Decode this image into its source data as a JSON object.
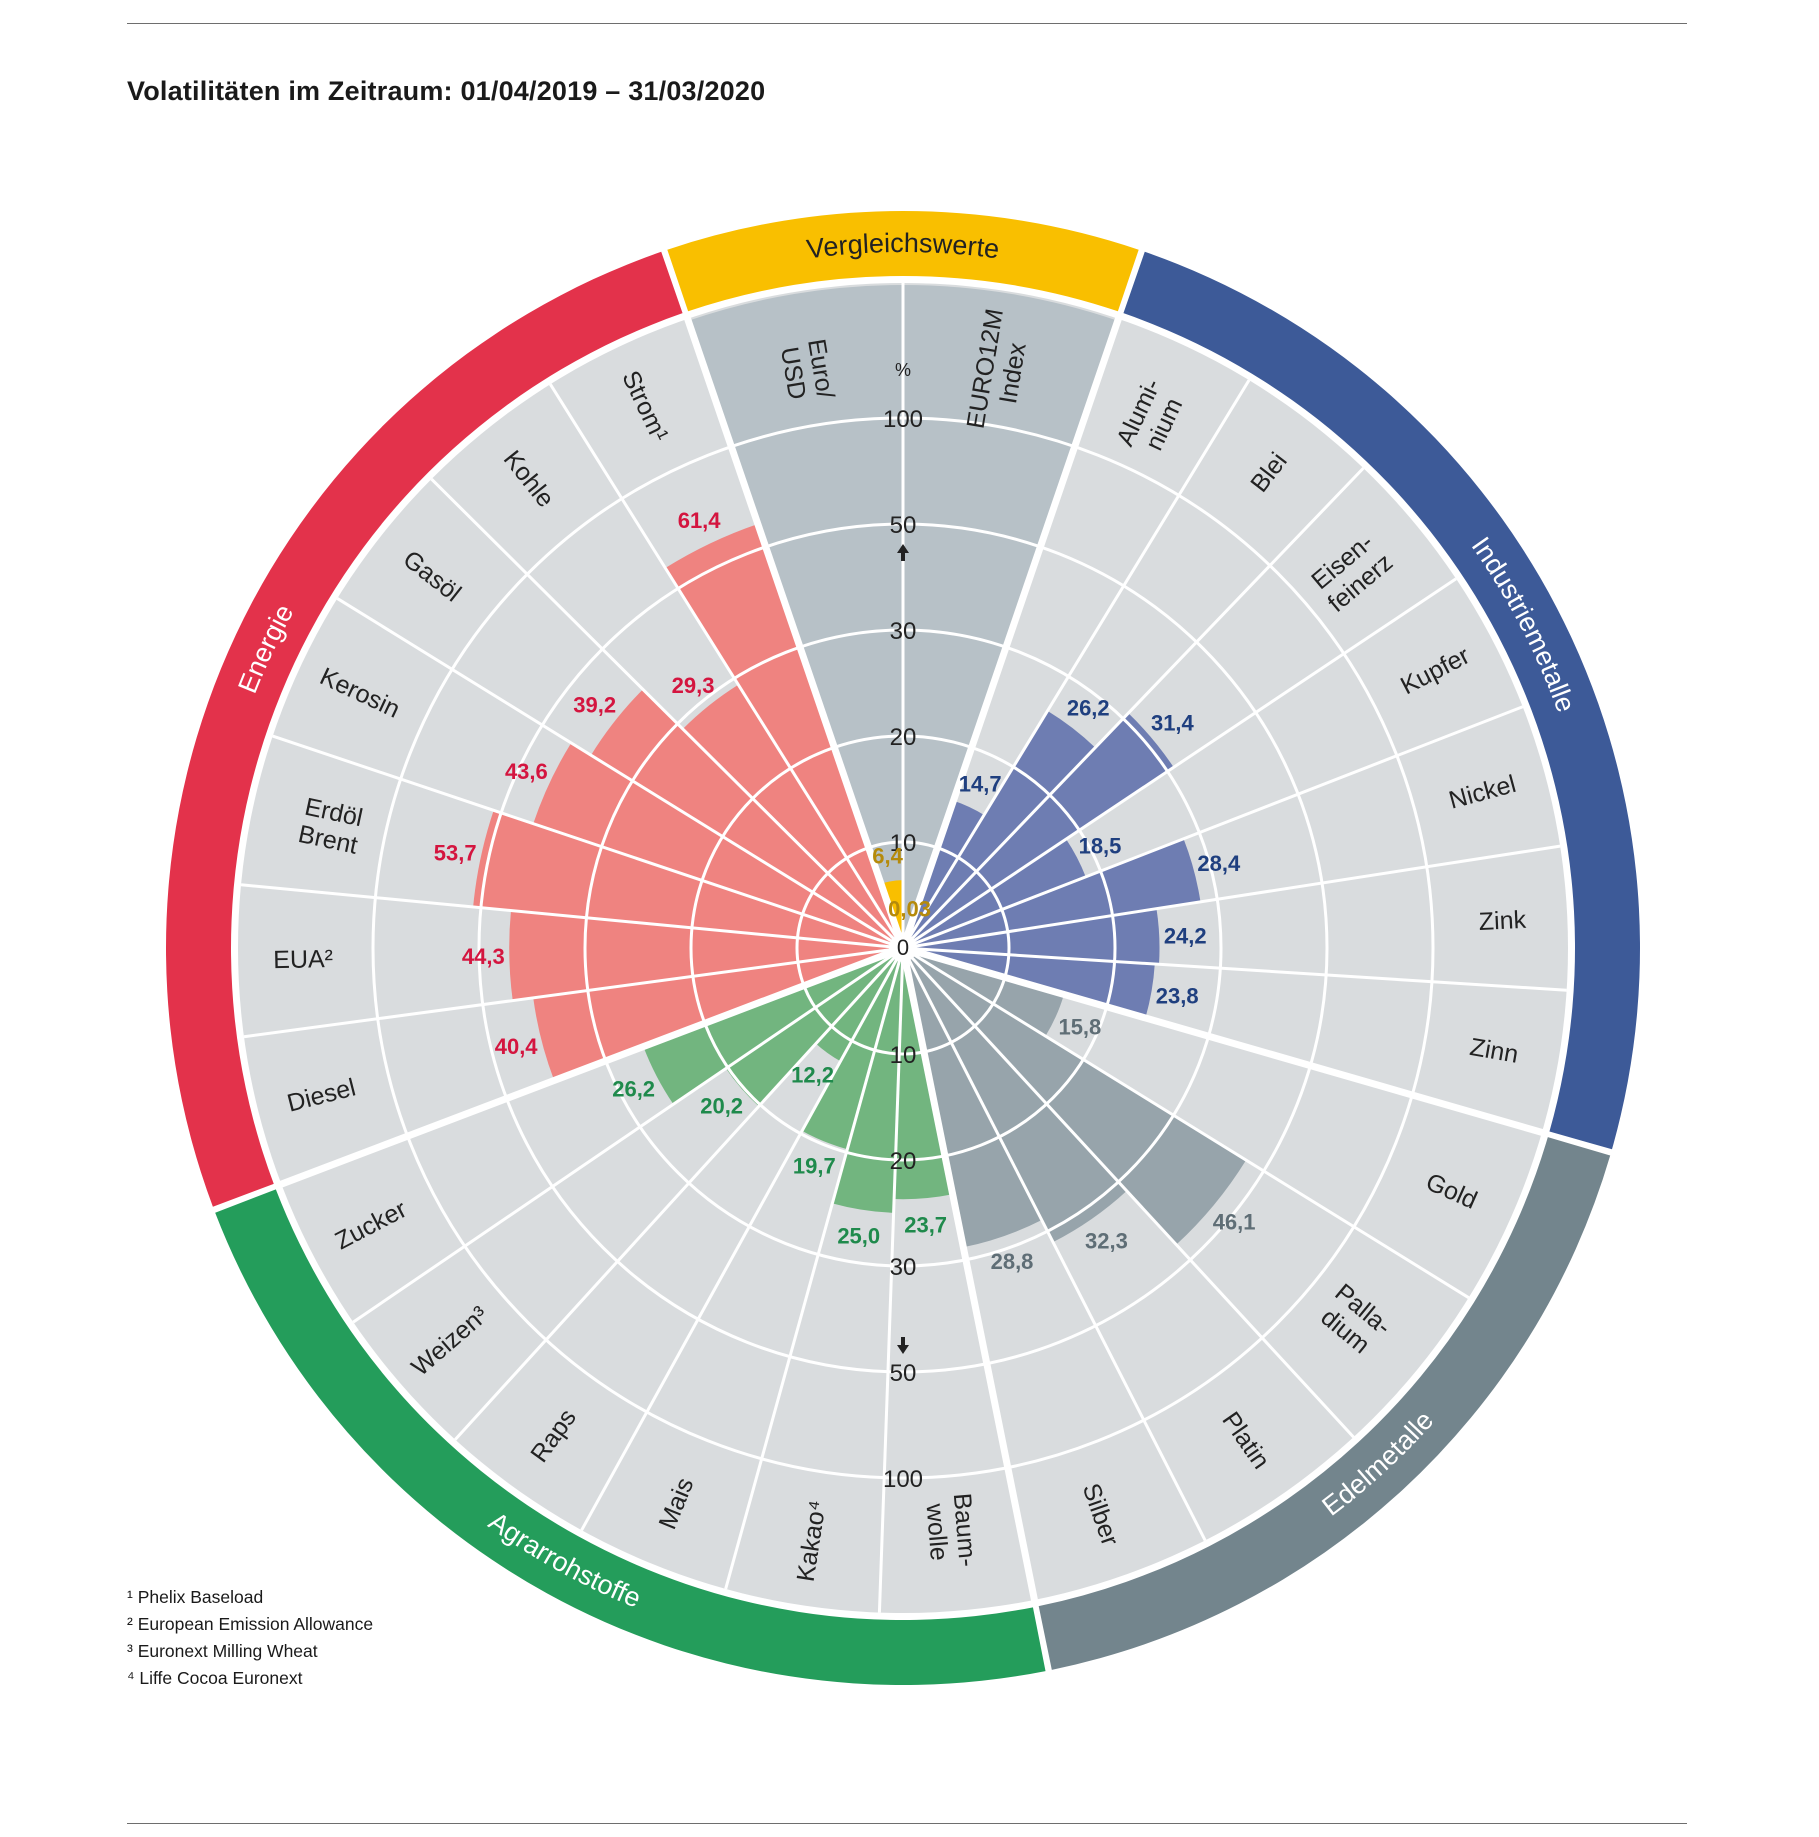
{
  "title": "Volatilitäten im Zeitraum: 01/04/2019 – 31/03/2020",
  "colors": {
    "Vergleichswerte": "#f9bf00",
    "Industriemetalle": "#3d5a98",
    "Edelmetalle": "#73858d",
    "Agrarrohstoffe": "#249d5b",
    "Energie": "#e3324b",
    "background_sector": "#d9dcde",
    "comparison_sector": "#b7c1c7",
    "grid": "#ffffff"
  },
  "chart_data": {
    "type": "polar-bar",
    "unit": "%",
    "scale_ticks_up": [
      "10",
      "20",
      "30",
      "50",
      "100"
    ],
    "scale_ticks_down": [
      "10",
      "20",
      "30",
      "50",
      "100"
    ],
    "center_label": "0",
    "unit_label": "%",
    "groups": [
      {
        "name": "Vergleichswerte",
        "color": "#f9bf00",
        "value_color": "#b58a0b",
        "bar_color": "#f9bf00",
        "items": [
          {
            "label": "EURO12M Index",
            "value": 0.03,
            "value_label": "0,03"
          },
          {
            "label": "Euro/ USD",
            "value": 6.4,
            "value_label": "6,4"
          }
        ]
      },
      {
        "name": "Energie",
        "color": "#e3324b",
        "value_color": "#d4153f",
        "bar_color": "#ef8380",
        "items": [
          {
            "label": "Strom¹",
            "value": 61.4,
            "value_label": "61,4"
          },
          {
            "label": "Kohle",
            "value": 29.3,
            "value_label": "29,3"
          },
          {
            "label": "Gasöl",
            "value": 39.2,
            "value_label": "39,2"
          },
          {
            "label": "Kerosin",
            "value": 43.6,
            "value_label": "43,6"
          },
          {
            "label": "Erdöl Brent",
            "value": 53.7,
            "value_label": "53,7"
          },
          {
            "label": "EUA²",
            "value": 44.3,
            "value_label": "44,3"
          },
          {
            "label": "Diesel",
            "value": 40.4,
            "value_label": "40,4"
          }
        ]
      },
      {
        "name": "Agrarrohstoffe",
        "color": "#249d5b",
        "value_color": "#1f8a4c",
        "bar_color": "#72b57f",
        "items": [
          {
            "label": "Zucker",
            "value": 26.2,
            "value_label": "26,2"
          },
          {
            "label": "Weizen³",
            "value": 20.2,
            "value_label": "20,2"
          },
          {
            "label": "Raps",
            "value": 12.2,
            "value_label": "12,2"
          },
          {
            "label": "Mais",
            "value": 19.7,
            "value_label": "19,7"
          },
          {
            "label": "Kakao⁴",
            "value": 25.0,
            "value_label": "25,0"
          },
          {
            "label": "Baum- wolle",
            "value": 23.7,
            "value_label": "23,7"
          }
        ]
      },
      {
        "name": "Edelmetalle",
        "color": "#73858d",
        "value_color": "#5f6e76",
        "bar_color": "#97a4ab",
        "items": [
          {
            "label": "Silber",
            "value": 28.8,
            "value_label": "28,8"
          },
          {
            "label": "Platin",
            "value": 32.3,
            "value_label": "32,3"
          },
          {
            "label": "Palla- dium",
            "value": 46.1,
            "value_label": "46,1"
          },
          {
            "label": "Gold",
            "value": 15.8,
            "value_label": "15,8"
          }
        ]
      },
      {
        "name": "Industriemetalle",
        "color": "#3d5a98",
        "value_color": "#1f3f7f",
        "bar_color": "#6e7db2",
        "items": [
          {
            "label": "Zinn",
            "value": 23.8,
            "value_label": "23,8"
          },
          {
            "label": "Zink",
            "value": 24.2,
            "value_label": "24,2"
          },
          {
            "label": "Nickel",
            "value": 28.4,
            "value_label": "28,4"
          },
          {
            "label": "Kupfer",
            "value": 18.5,
            "value_label": "18,5"
          },
          {
            "label": "Eisen- feinerz",
            "value": 31.4,
            "value_label": "31,4"
          },
          {
            "label": "Blei",
            "value": 26.2,
            "value_label": "26,2"
          },
          {
            "label": "Alumi- nium",
            "value": 14.7,
            "value_label": "14,7"
          }
        ]
      }
    ]
  },
  "footnotes": [
    "¹ Phelix Baseload",
    "² European Emission Allowance",
    "³ Euronext Milling Wheat",
    "⁴ Liffe Cocoa Euronext"
  ]
}
